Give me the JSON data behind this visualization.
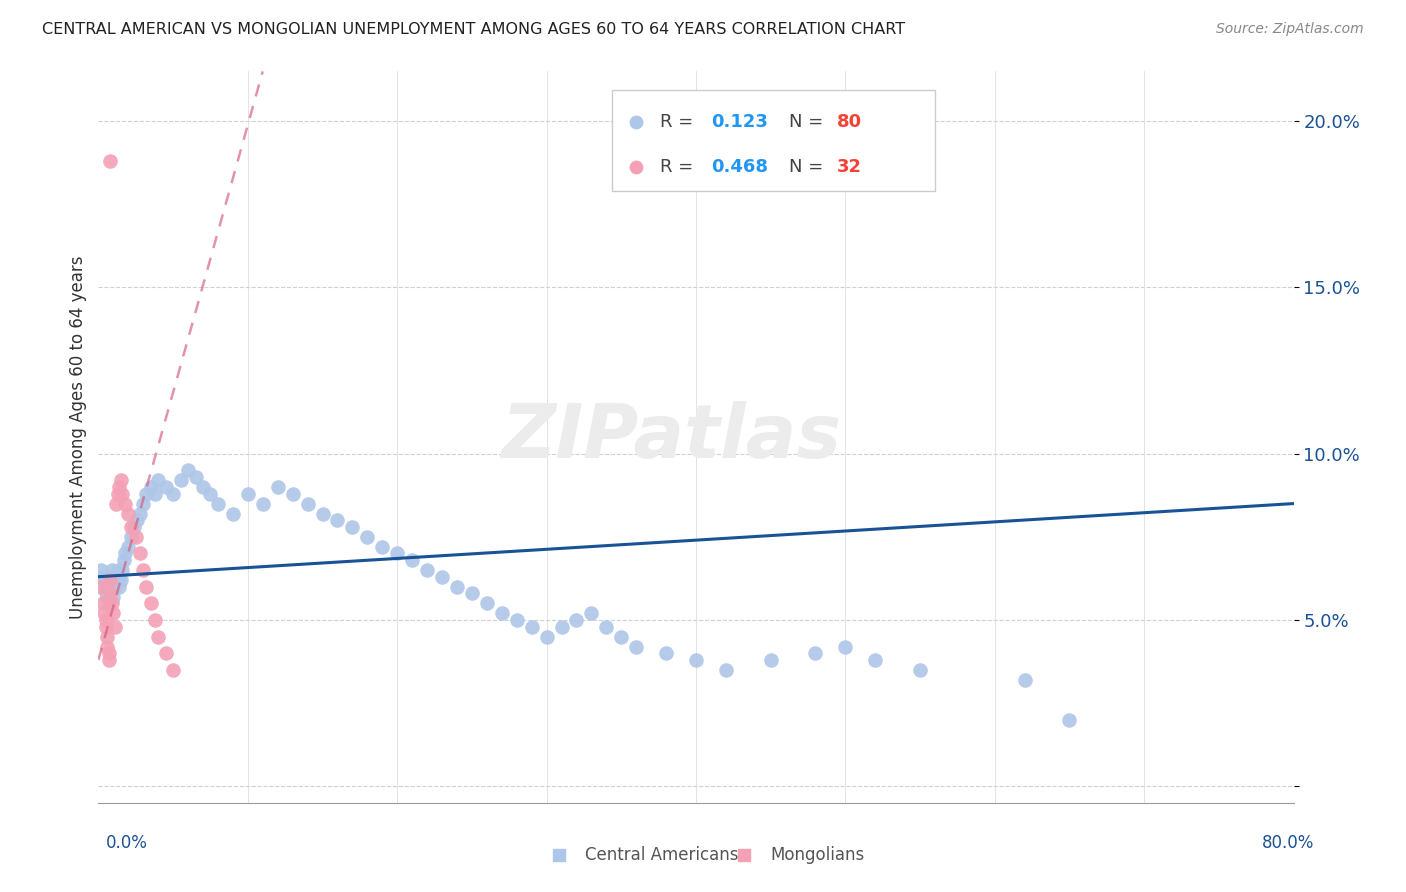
{
  "title": "CENTRAL AMERICAN VS MONGOLIAN UNEMPLOYMENT AMONG AGES 60 TO 64 YEARS CORRELATION CHART",
  "source": "Source: ZipAtlas.com",
  "ylabel": "Unemployment Among Ages 60 to 64 years",
  "blue_color": "#aec6e8",
  "blue_line_color": "#1a5296",
  "pink_color": "#f4a0b5",
  "pink_line_color": "#d45a78",
  "watermark": "ZIPatlas",
  "xlim": [
    0.0,
    0.8
  ],
  "ylim": [
    -0.005,
    0.215
  ],
  "yticks": [
    0.0,
    0.05,
    0.1,
    0.15,
    0.2
  ],
  "ytick_labels": [
    "",
    "5.0%",
    "10.0%",
    "15.0%",
    "20.0%"
  ],
  "blue_scatter_x": [
    0.002,
    0.003,
    0.004,
    0.005,
    0.005,
    0.006,
    0.006,
    0.007,
    0.007,
    0.008,
    0.008,
    0.009,
    0.009,
    0.01,
    0.01,
    0.011,
    0.012,
    0.013,
    0.013,
    0.014,
    0.015,
    0.016,
    0.017,
    0.018,
    0.02,
    0.022,
    0.024,
    0.026,
    0.028,
    0.03,
    0.032,
    0.035,
    0.038,
    0.04,
    0.045,
    0.05,
    0.055,
    0.06,
    0.065,
    0.07,
    0.075,
    0.08,
    0.09,
    0.1,
    0.11,
    0.12,
    0.13,
    0.14,
    0.15,
    0.16,
    0.17,
    0.18,
    0.19,
    0.2,
    0.21,
    0.22,
    0.23,
    0.24,
    0.25,
    0.26,
    0.27,
    0.28,
    0.29,
    0.3,
    0.31,
    0.32,
    0.33,
    0.34,
    0.35,
    0.36,
    0.38,
    0.4,
    0.42,
    0.45,
    0.48,
    0.5,
    0.52,
    0.55,
    0.62,
    0.65
  ],
  "blue_scatter_y": [
    0.065,
    0.063,
    0.062,
    0.06,
    0.058,
    0.057,
    0.06,
    0.062,
    0.055,
    0.063,
    0.058,
    0.06,
    0.065,
    0.062,
    0.057,
    0.06,
    0.063,
    0.062,
    0.065,
    0.06,
    0.062,
    0.065,
    0.068,
    0.07,
    0.072,
    0.075,
    0.078,
    0.08,
    0.082,
    0.085,
    0.088,
    0.09,
    0.088,
    0.092,
    0.09,
    0.088,
    0.092,
    0.095,
    0.093,
    0.09,
    0.088,
    0.085,
    0.082,
    0.088,
    0.085,
    0.09,
    0.088,
    0.085,
    0.082,
    0.08,
    0.078,
    0.075,
    0.072,
    0.07,
    0.068,
    0.065,
    0.063,
    0.06,
    0.058,
    0.055,
    0.052,
    0.05,
    0.048,
    0.045,
    0.048,
    0.05,
    0.052,
    0.048,
    0.045,
    0.042,
    0.04,
    0.038,
    0.035,
    0.038,
    0.04,
    0.042,
    0.038,
    0.035,
    0.032,
    0.02
  ],
  "pink_scatter_x": [
    0.002,
    0.003,
    0.004,
    0.005,
    0.005,
    0.006,
    0.006,
    0.007,
    0.007,
    0.008,
    0.008,
    0.009,
    0.01,
    0.011,
    0.012,
    0.013,
    0.014,
    0.015,
    0.016,
    0.018,
    0.02,
    0.022,
    0.025,
    0.028,
    0.03,
    0.032,
    0.035,
    0.038,
    0.04,
    0.045,
    0.05,
    0.008
  ],
  "pink_scatter_y": [
    0.06,
    0.055,
    0.052,
    0.05,
    0.048,
    0.045,
    0.042,
    0.04,
    0.038,
    0.062,
    0.058,
    0.055,
    0.052,
    0.048,
    0.085,
    0.088,
    0.09,
    0.092,
    0.088,
    0.085,
    0.082,
    0.078,
    0.075,
    0.07,
    0.065,
    0.06,
    0.055,
    0.05,
    0.045,
    0.04,
    0.035,
    0.188
  ],
  "blue_trend_x": [
    0.0,
    0.8
  ],
  "blue_trend_y": [
    0.063,
    0.085
  ],
  "pink_trend_x": [
    0.0,
    0.11
  ],
  "pink_trend_y": [
    0.038,
    0.215
  ]
}
